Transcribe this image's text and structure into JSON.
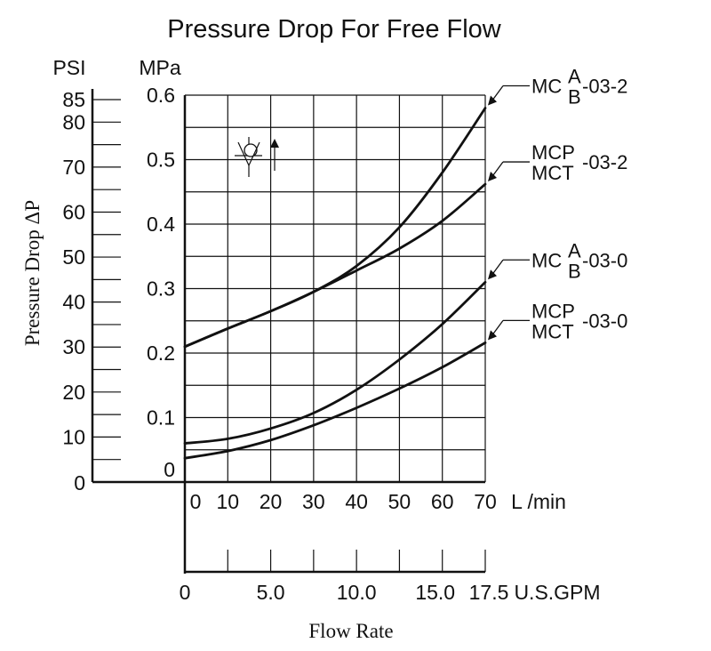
{
  "chart_data": {
    "type": "line",
    "title": "Pressure Drop For Free Flow",
    "ylabel": "Pressure Drop ΔP",
    "xlabel": "Flow Rate",
    "y_units_left": "PSI",
    "y_units_right": "MPa",
    "x_units_top": "L /min",
    "x_units_bottom": "U.S.GPM",
    "xlim": [
      0,
      70
    ],
    "ylim": [
      0,
      0.6
    ],
    "x_ticks": [
      0,
      10,
      20,
      30,
      40,
      50,
      60,
      70
    ],
    "x_tick_labels": [
      "0",
      "10",
      "20",
      "30",
      "40",
      "50",
      "60",
      "70"
    ],
    "y_ticks_mpa": [
      0,
      0.1,
      0.2,
      0.3,
      0.4,
      0.5,
      0.6
    ],
    "y_tick_labels_mpa": [
      "0",
      "0.1",
      "0.2",
      "0.3",
      "0.4",
      "0.5",
      "0.6"
    ],
    "psi_ticks": [
      0,
      10,
      20,
      30,
      40,
      50,
      60,
      70,
      80,
      85
    ],
    "psi_tick_labels": [
      "0",
      "10",
      "20",
      "30",
      "40",
      "50",
      "60",
      "70",
      "80",
      "85"
    ],
    "gpm_ticks": [
      0,
      5.0,
      10.0,
      15.0,
      17.5
    ],
    "gpm_tick_labels": [
      "0",
      "5.0",
      "10.0",
      "15.0",
      "17.5"
    ],
    "gpm_minor_ticks": [
      2.5,
      7.5,
      12.5
    ],
    "series": [
      {
        "name": "MCA/B-03-2",
        "label_prefix": "MC",
        "label_top": "A",
        "label_bottom": "B",
        "label_suffix": "-03-2",
        "x": [
          0,
          10,
          20,
          30,
          40,
          50,
          60,
          70
        ],
        "values": [
          0.21,
          0.238,
          0.265,
          0.295,
          0.335,
          0.395,
          0.48,
          0.58
        ]
      },
      {
        "name": "MCP/MCT-03-2",
        "label_prefix": "",
        "label_top": "MCP",
        "label_bottom": "MCT",
        "label_suffix": "-03-2",
        "x": [
          0,
          10,
          20,
          30,
          40,
          50,
          60,
          70
        ],
        "values": [
          0.21,
          0.238,
          0.265,
          0.295,
          0.328,
          0.362,
          0.405,
          0.462
        ]
      },
      {
        "name": "MCA/B-03-0",
        "label_prefix": "MC",
        "label_top": "A",
        "label_bottom": "B",
        "label_suffix": "-03-0",
        "x": [
          0,
          10,
          20,
          30,
          40,
          50,
          60,
          70
        ],
        "values": [
          0.06,
          0.067,
          0.083,
          0.107,
          0.143,
          0.19,
          0.245,
          0.31
        ]
      },
      {
        "name": "MCP/MCT-03-0",
        "label_prefix": "",
        "label_top": "MCP",
        "label_bottom": "MCT",
        "label_suffix": "-03-0",
        "x": [
          0,
          10,
          20,
          30,
          40,
          50,
          60,
          70
        ],
        "values": [
          0.037,
          0.048,
          0.065,
          0.088,
          0.115,
          0.145,
          0.178,
          0.216
        ]
      }
    ],
    "grid": true,
    "legend": "right-side leader labels",
    "symbol": "check-valve-free-flow"
  }
}
